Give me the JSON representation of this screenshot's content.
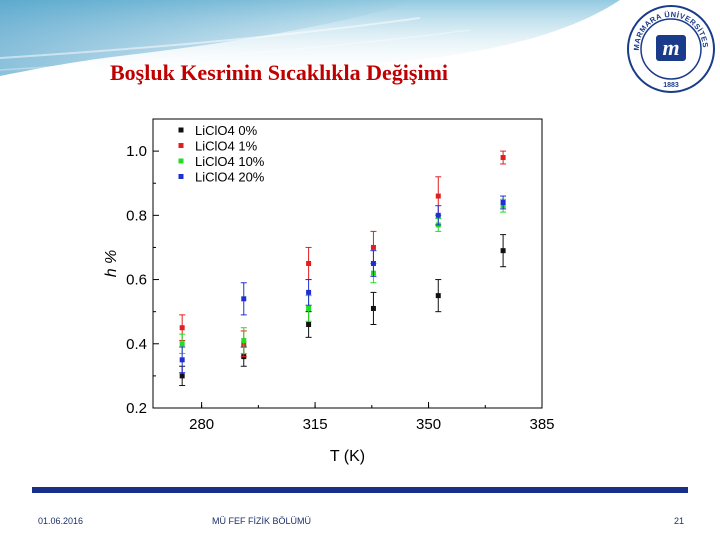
{
  "slide": {
    "title": "Boşluk Kesrinin Sıcaklıkla Değişimi",
    "footer_date": "01.06.2016",
    "footer_dept": "MÜ FEF FİZİK BÖLÜMÜ",
    "page_number": "21",
    "accent_color": "#1a2f8a",
    "title_color": "#c00000"
  },
  "logo": {
    "text_top": "MARMARA ÜNİVERSİTESİ",
    "year": "1883",
    "monogram": "m"
  },
  "chart_data": {
    "type": "scatter",
    "xlabel": "T (K)",
    "ylabel": "h %",
    "xlim": [
      265,
      385
    ],
    "ylim": [
      0.2,
      1.1
    ],
    "xticks": [
      280,
      315,
      350,
      385
    ],
    "yticks": [
      0.2,
      0.4,
      0.6,
      0.8,
      1.0
    ],
    "xtick_labels": [
      "280",
      "315",
      "350",
      "385"
    ],
    "ytick_labels": [
      "0.2",
      "0.4",
      "0.6",
      "0.8",
      "1.0"
    ],
    "legend_position": "top-left",
    "grid": false,
    "series": [
      {
        "name": "LiClO4 0%",
        "color": "#111111",
        "x": [
          274,
          293,
          313,
          333,
          353,
          373
        ],
        "y": [
          0.3,
          0.36,
          0.46,
          0.51,
          0.55,
          0.69
        ],
        "err": [
          0.03,
          0.03,
          0.04,
          0.05,
          0.05,
          0.05
        ]
      },
      {
        "name": "LiClO4 1%",
        "color": "#e02020",
        "x": [
          274,
          293,
          313,
          333,
          353,
          373
        ],
        "y": [
          0.45,
          0.4,
          0.65,
          0.7,
          0.86,
          0.98
        ],
        "err": [
          0.04,
          0.04,
          0.05,
          0.05,
          0.06,
          0.02
        ]
      },
      {
        "name": "LiClO4 10%",
        "color": "#22dd22",
        "x": [
          274,
          293,
          313,
          333,
          353,
          373
        ],
        "y": [
          0.4,
          0.41,
          0.51,
          0.62,
          0.77,
          0.83
        ],
        "err": [
          0.03,
          0.04,
          0.04,
          0.03,
          0.02,
          0.02
        ]
      },
      {
        "name": "LiClO4 20%",
        "color": "#2030d0",
        "x": [
          274,
          293,
          313,
          333,
          353,
          373
        ],
        "y": [
          0.35,
          0.54,
          0.56,
          0.65,
          0.8,
          0.84
        ],
        "err": [
          0.04,
          0.05,
          0.04,
          0.04,
          0.03,
          0.02
        ]
      }
    ]
  }
}
